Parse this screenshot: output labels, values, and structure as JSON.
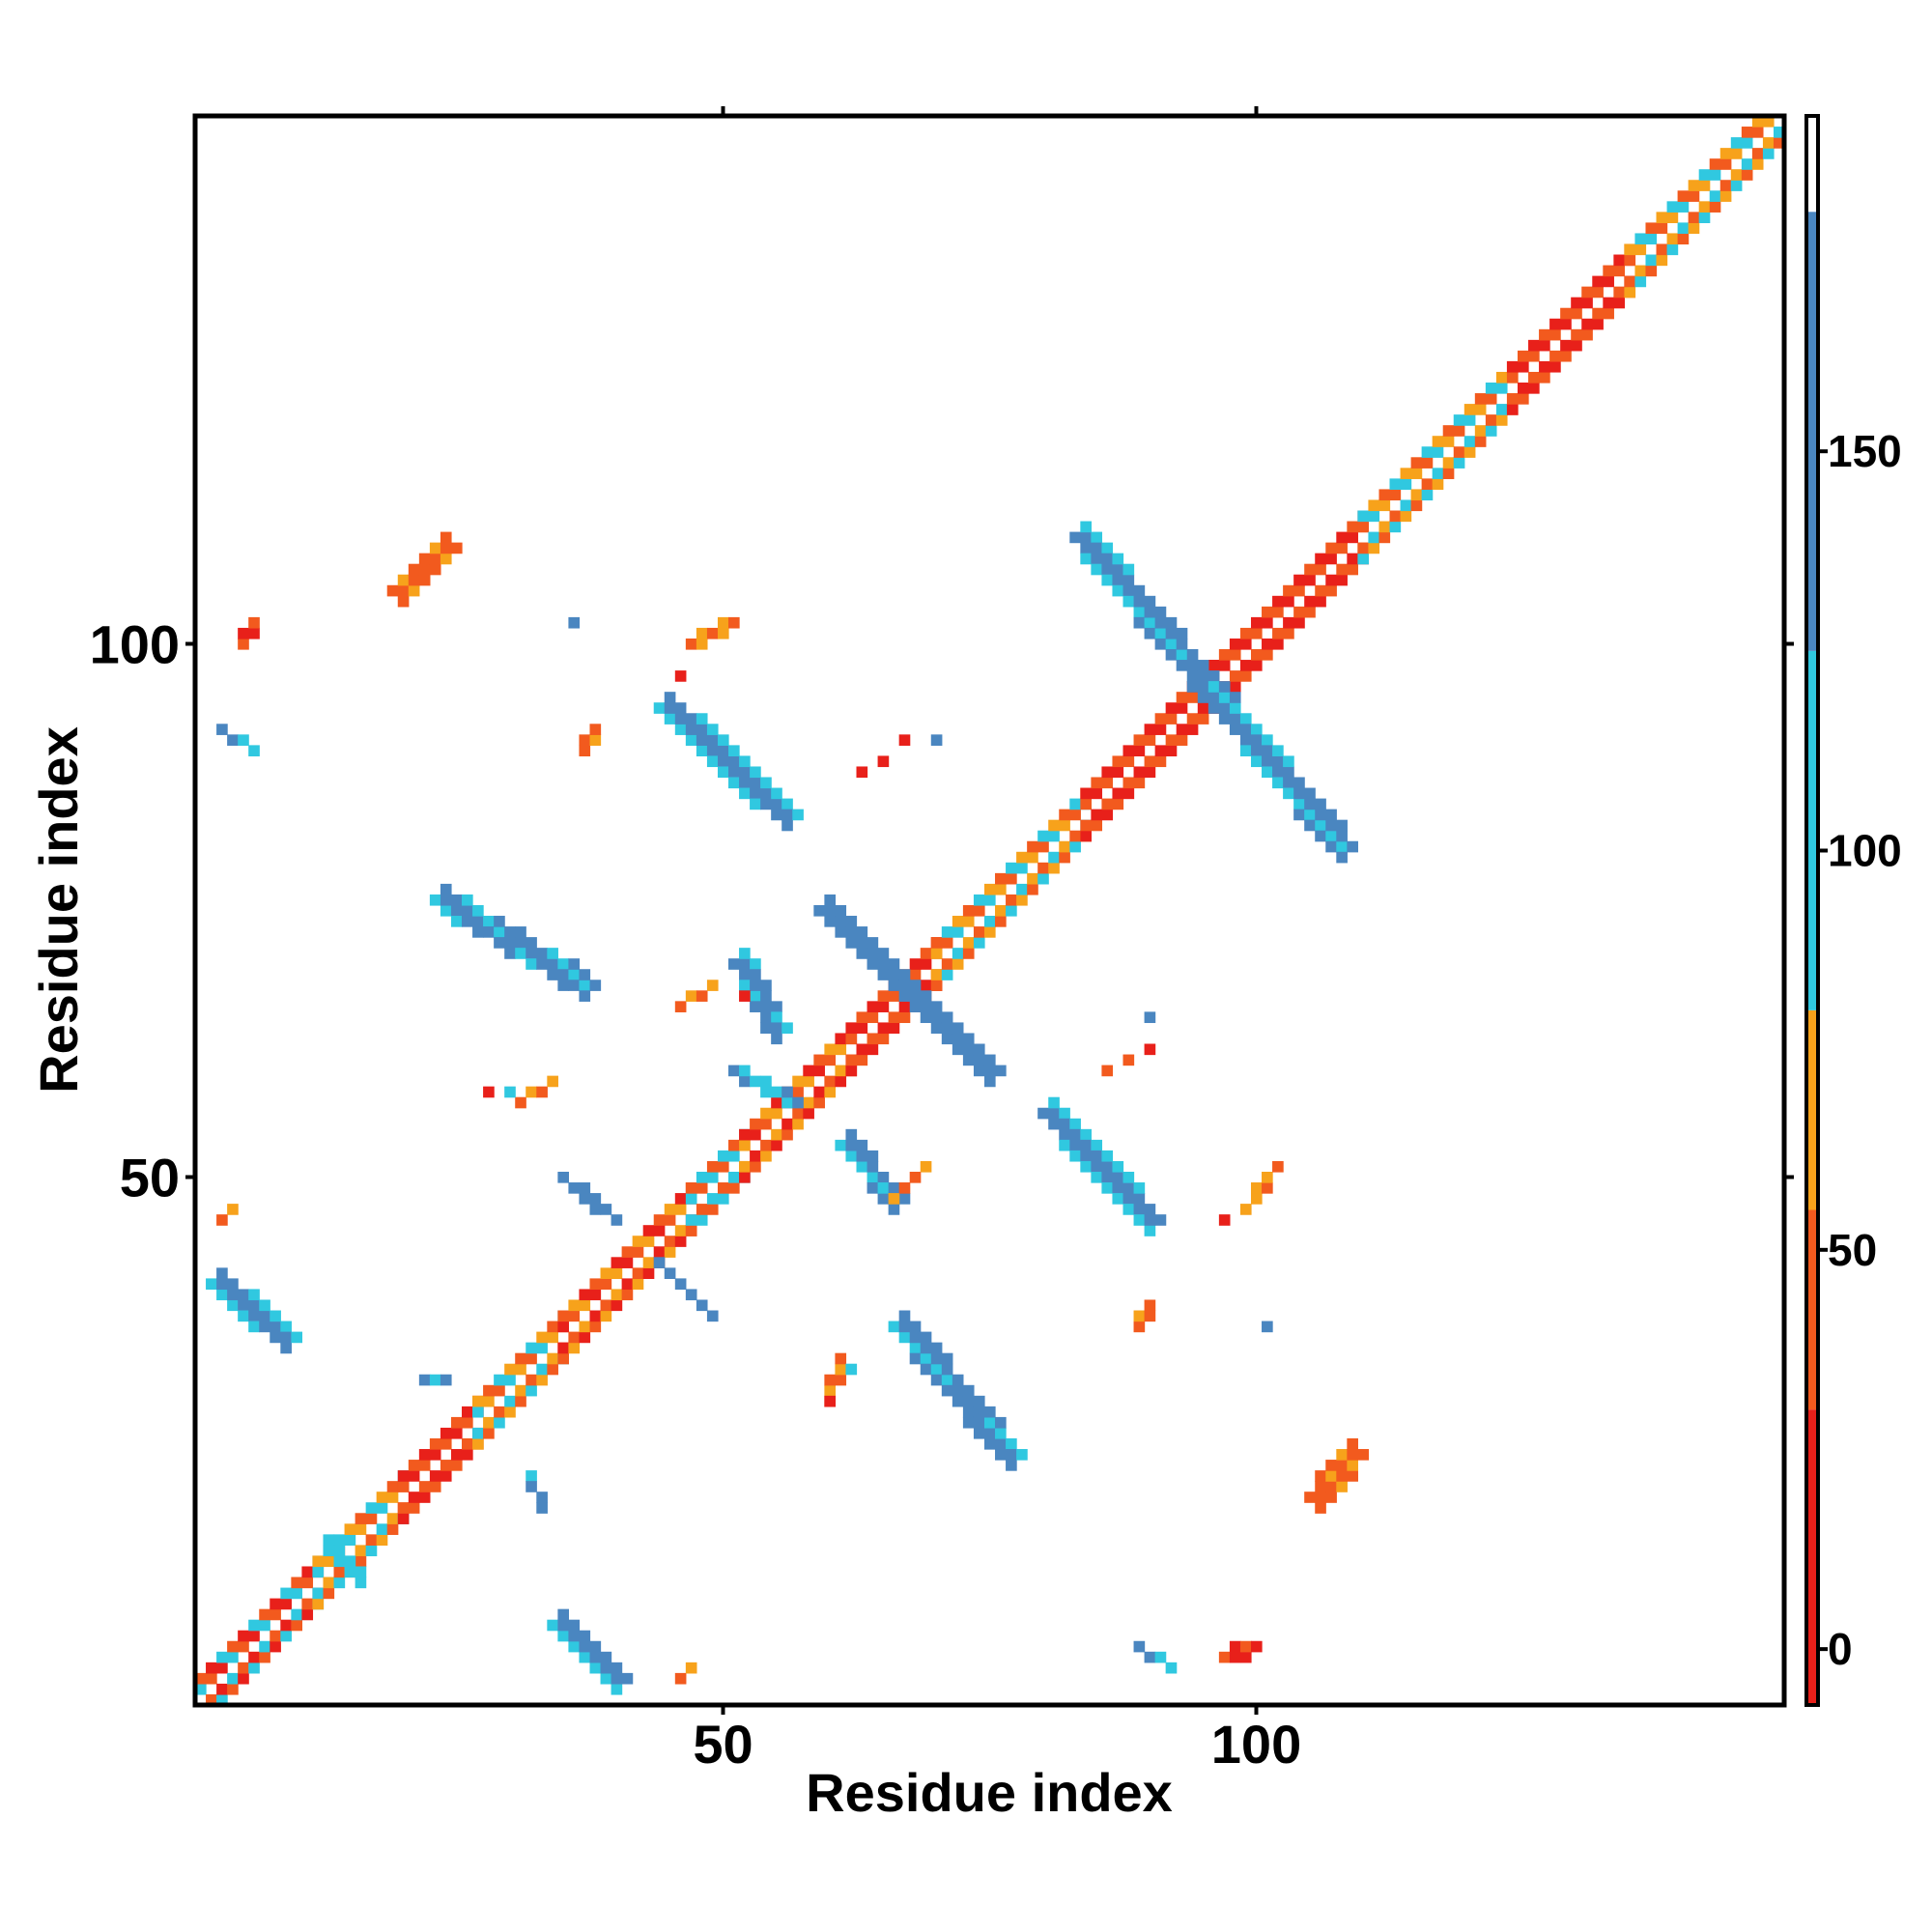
{
  "chart_data": {
    "type": "heatmap",
    "xlabel": "Residue index",
    "ylabel": "Residue index",
    "xlim": [
      1,
      149
    ],
    "ylim": [
      1,
      149
    ],
    "x_ticks": [
      50,
      100
    ],
    "y_ticks": [
      50,
      100
    ],
    "colorbar": {
      "ticks": [
        0,
        50,
        100,
        150
      ],
      "range": [
        -7,
        192
      ],
      "bands": [
        {
          "from": -7,
          "to": 30,
          "color": "#e8201a"
        },
        {
          "from": 30,
          "to": 55,
          "color": "#f25a1e"
        },
        {
          "from": 55,
          "to": 80,
          "color": "#f7a21b"
        },
        {
          "from": 80,
          "to": 125,
          "color": "#30c8e0"
        },
        {
          "from": 125,
          "to": 180,
          "color": "#4a86c0"
        },
        {
          "from": 180,
          "to": 192,
          "color": "#ffffff"
        }
      ]
    },
    "diagonal": {
      "start": 1,
      "end": 149,
      "width": 5,
      "segments": [
        {
          "from": 1,
          "to": 12,
          "colors": [
            "#f25a1e",
            "#e8201a",
            "#30c8e0"
          ]
        },
        {
          "from": 12,
          "to": 20,
          "colors": [
            "#f25a1e",
            "#30c8e0",
            "#f7a21b"
          ]
        },
        {
          "from": 20,
          "to": 27,
          "colors": [
            "#e8201a",
            "#f25a1e"
          ]
        },
        {
          "from": 27,
          "to": 35,
          "colors": [
            "#f25a1e",
            "#30c8e0",
            "#f7a21b"
          ]
        },
        {
          "from": 35,
          "to": 47,
          "colors": [
            "#e8201a",
            "#f25a1e",
            "#f7a21b"
          ]
        },
        {
          "from": 47,
          "to": 52,
          "colors": [
            "#30c8e0",
            "#f25a1e"
          ]
        },
        {
          "from": 52,
          "to": 62,
          "colors": [
            "#e8201a",
            "#f25a1e",
            "#f7a21b"
          ]
        },
        {
          "from": 62,
          "to": 70,
          "colors": [
            "#e8201a",
            "#f25a1e"
          ]
        },
        {
          "from": 70,
          "to": 84,
          "colors": [
            "#f25a1e",
            "#30c8e0",
            "#f7a21b"
          ]
        },
        {
          "from": 84,
          "to": 96,
          "colors": [
            "#e8201a",
            "#f25a1e"
          ]
        },
        {
          "from": 96,
          "to": 110,
          "colors": [
            "#e8201a",
            "#f25a1e"
          ]
        },
        {
          "from": 110,
          "to": 124,
          "colors": [
            "#f25a1e",
            "#30c8e0",
            "#f7a21b"
          ]
        },
        {
          "from": 124,
          "to": 135,
          "colors": [
            "#e8201a",
            "#f25a1e"
          ]
        },
        {
          "from": 135,
          "to": 149,
          "colors": [
            "#30c8e0",
            "#f25a1e",
            "#f7a21b"
          ]
        }
      ]
    },
    "bands": [
      {
        "x1": 84,
        "y1": 110,
        "x2": 108,
        "y2": 81,
        "width": 2.6,
        "color": "#4a86c0",
        "edge": "#30c8e0"
      },
      {
        "x1": 45,
        "y1": 94,
        "x2": 56,
        "y2": 84,
        "width": 2.6,
        "color": "#4a86c0",
        "edge": "#30c8e0"
      },
      {
        "x1": 24,
        "y1": 76,
        "x2": 37,
        "y2": 68,
        "width": 2.6,
        "color": "#4a86c0",
        "edge": "#30c8e0"
      },
      {
        "x1": 60,
        "y1": 75,
        "x2": 75,
        "y2": 60,
        "width": 2.6,
        "color": "#4a86c0",
        "edge": "#30c8e0"
      },
      {
        "x1": 81,
        "y1": 56,
        "x2": 90,
        "y2": 46,
        "width": 2.6,
        "color": "#4a86c0",
        "edge": "#30c8e0"
      },
      {
        "x1": 67,
        "y1": 36,
        "x2": 77,
        "y2": 24,
        "width": 2.6,
        "color": "#4a86c0",
        "edge": "#30c8e0"
      },
      {
        "x1": 3,
        "y1": 40,
        "x2": 9,
        "y2": 35,
        "width": 2.6,
        "color": "#4a86c0",
        "edge": "#30c8e0"
      },
      {
        "x1": 35,
        "y1": 8,
        "x2": 40,
        "y2": 3,
        "width": 2.6,
        "color": "#4a86c0",
        "edge": "#30c8e0"
      },
      {
        "x1": 62,
        "y1": 53,
        "x2": 66,
        "y2": 48,
        "width": 2.2,
        "color": "#4a86c0",
        "edge": "#30c8e0"
      },
      {
        "x1": 52,
        "y1": 70,
        "x2": 55,
        "y2": 64,
        "width": 2.0,
        "color": "#4a86c0",
        "edge": "#30c8e0"
      },
      {
        "x1": 51,
        "y1": 60,
        "x2": 57,
        "y2": 57,
        "width": 1.6,
        "color": "#30c8e0",
        "edge": "#4a86c0"
      },
      {
        "x1": 35,
        "y1": 50,
        "x2": 40,
        "y2": 46,
        "width": 1.3,
        "color": "#4a86c0",
        "edge": "#30c8e0"
      },
      {
        "x1": 44,
        "y1": 42,
        "x2": 49,
        "y2": 37,
        "width": 1.3,
        "color": "#4a86c0",
        "edge": "#30c8e0"
      },
      {
        "x1": 13,
        "y1": 16,
        "x2": 16,
        "y2": 12,
        "width": 1.8,
        "color": "#30c8e0",
        "edge": "#4a86c0"
      },
      {
        "x1": 22,
        "y1": 31,
        "x2": 24,
        "y2": 31,
        "width": 1.2,
        "color": "#4a86c0",
        "edge": "#30c8e0"
      },
      {
        "x1": 3,
        "y1": 92,
        "x2": 6,
        "y2": 90,
        "width": 1.2,
        "color": "#4a86c0",
        "edge": "#30c8e0"
      },
      {
        "x1": 89,
        "y1": 6,
        "x2": 92,
        "y2": 4,
        "width": 1.2,
        "color": "#4a86c0",
        "edge": "#30c8e0"
      },
      {
        "x1": 32,
        "y1": 22,
        "x2": 33,
        "y2": 19,
        "width": 1.0,
        "color": "#4a86c0",
        "edge": "#30c8e0"
      }
    ],
    "patches": [
      {
        "x1": 20,
        "y1": 105,
        "x2": 24,
        "y2": 109,
        "width": 2.8,
        "color": "#f25a1e",
        "edge": "#f7a21b"
      },
      {
        "x1": 106,
        "y1": 20,
        "x2": 109,
        "y2": 24,
        "width": 2.8,
        "color": "#f25a1e",
        "edge": "#f7a21b"
      },
      {
        "x1": 5,
        "y1": 100,
        "x2": 6,
        "y2": 102,
        "width": 1.6,
        "color": "#e8201a",
        "edge": "#f25a1e"
      },
      {
        "x1": 97,
        "y1": 5,
        "x2": 100,
        "y2": 6,
        "width": 1.6,
        "color": "#e8201a",
        "edge": "#f25a1e"
      },
      {
        "x1": 47,
        "y1": 100,
        "x2": 51,
        "y2": 102,
        "width": 1.0,
        "color": "#f7a21b",
        "edge": "#f25a1e"
      },
      {
        "x1": 99,
        "y1": 47,
        "x2": 102,
        "y2": 51,
        "width": 1.0,
        "color": "#f7a21b",
        "edge": "#f25a1e"
      },
      {
        "x1": 46,
        "y1": 66,
        "x2": 49,
        "y2": 68,
        "width": 1.2,
        "color": "#f25a1e",
        "edge": "#f7a21b"
      },
      {
        "x1": 66,
        "y1": 48,
        "x2": 69,
        "y2": 51,
        "width": 1.4,
        "color": "#f25a1e",
        "edge": "#f7a21b"
      },
      {
        "x1": 31,
        "y1": 57,
        "x2": 34,
        "y2": 59,
        "width": 1.0,
        "color": "#f25a1e",
        "edge": "#f7a21b"
      },
      {
        "x1": 60,
        "y1": 29,
        "x2": 61,
        "y2": 33,
        "width": 1.0,
        "color": "#f25a1e",
        "edge": "#f7a21b"
      },
      {
        "x1": 37,
        "y1": 90,
        "x2": 38,
        "y2": 92,
        "width": 1.2,
        "color": "#f25a1e",
        "edge": "#f7a21b"
      },
      {
        "x1": 89,
        "y1": 36,
        "x2": 90,
        "y2": 38,
        "width": 1.2,
        "color": "#f25a1e",
        "edge": "#f7a21b"
      },
      {
        "x1": 3,
        "y1": 46,
        "x2": 4,
        "y2": 47,
        "width": 1.0,
        "color": "#f25a1e",
        "edge": "#f7a21b"
      },
      {
        "x1": 46,
        "y1": 3,
        "x2": 47,
        "y2": 4,
        "width": 1.0,
        "color": "#f25a1e",
        "edge": "#f7a21b"
      }
    ],
    "cells": [
      {
        "x": 46,
        "y": 97,
        "color": "#e8201a"
      },
      {
        "x": 36,
        "y": 102,
        "color": "#4a86c0"
      },
      {
        "x": 67,
        "y": 91,
        "color": "#e8201a"
      },
      {
        "x": 70,
        "y": 91,
        "color": "#4a86c0"
      },
      {
        "x": 65,
        "y": 89,
        "color": "#e8201a"
      },
      {
        "x": 63,
        "y": 88,
        "color": "#e8201a"
      },
      {
        "x": 90,
        "y": 65,
        "color": "#4a86c0"
      },
      {
        "x": 90,
        "y": 62,
        "color": "#e8201a"
      },
      {
        "x": 88,
        "y": 61,
        "color": "#f25a1e"
      },
      {
        "x": 86,
        "y": 60,
        "color": "#f25a1e"
      },
      {
        "x": 97,
        "y": 46,
        "color": "#e8201a"
      },
      {
        "x": 101,
        "y": 36,
        "color": "#4a86c0"
      },
      {
        "x": 52,
        "y": 67,
        "color": "#e8201a"
      },
      {
        "x": 30,
        "y": 58,
        "color": "#30c8e0"
      },
      {
        "x": 28,
        "y": 58,
        "color": "#e8201a"
      },
      {
        "x": 62,
        "y": 32,
        "color": "#30c8e0"
      },
      {
        "x": 60,
        "y": 29,
        "color": "#e8201a"
      }
    ]
  }
}
